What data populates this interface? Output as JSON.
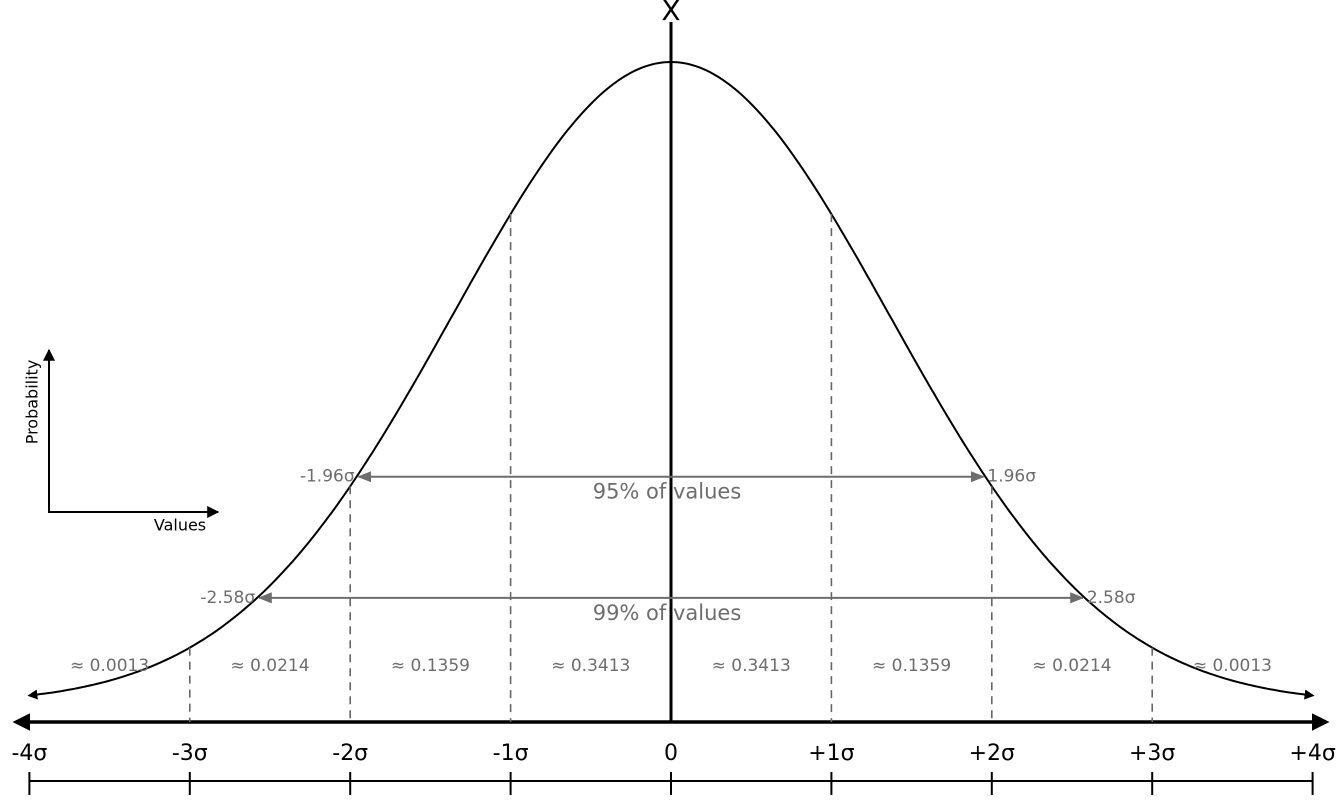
{
  "axis_label": "X",
  "legend": {
    "y_label": "Probability",
    "x_label": "Values"
  },
  "ticks": [
    "-4σ",
    "-3σ",
    "-2σ",
    "-1σ",
    "0",
    "+1σ",
    "+2σ",
    "+3σ",
    "+4σ"
  ],
  "regions": [
    "≈ 0.0013",
    "≈ 0.0214",
    "≈ 0.1359",
    "≈ 0.3413",
    "≈ 0.3413",
    "≈ 0.1359",
    "≈ 0.0214",
    "≈ 0.0013"
  ],
  "intervals": [
    {
      "left": "-1.96σ",
      "right": "1.96σ",
      "label": "95% of values"
    },
    {
      "left": "-2.58σ",
      "right": "2.58σ",
      "label": "99% of values"
    }
  ]
}
